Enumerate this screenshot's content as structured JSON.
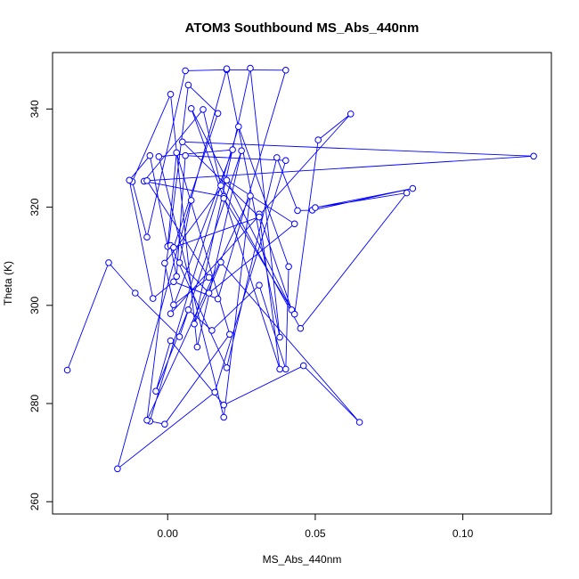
{
  "chart_data": {
    "type": "line",
    "title": "ATOM3 Southbound MS_Abs_440nm",
    "xlabel": "MS_Abs_440nm",
    "ylabel": "Theta (K)",
    "xlim": [
      -0.039,
      0.13
    ],
    "ylim": [
      257.5,
      351.5
    ],
    "xticks": [
      0.0,
      0.05,
      0.1
    ],
    "xtick_labels": [
      "0.00",
      "0.05",
      "0.10"
    ],
    "yticks": [
      260,
      280,
      300,
      320,
      340
    ],
    "ytick_labels": [
      "260",
      "280",
      "300",
      "320",
      "340"
    ],
    "grid": false,
    "legend": "none",
    "line_color": "#0000ff",
    "marker": "open-circle",
    "series": [
      {
        "x": [
          -0.034,
          -0.02,
          -0.011,
          0.004,
          0.025,
          0.01,
          0.001,
          -0.012,
          -0.007,
          0.006,
          0.02,
          0.04,
          0.017,
          0.002,
          -0.005,
          -0.013,
          -0.006,
          0.0,
          0.003,
          0.021,
          -0.001,
          -0.006,
          0.024,
          0.041,
          0.04,
          0.031,
          0.015,
          0.007,
          -0.004,
          0.001,
          0.019,
          0.046,
          0.065,
          0.018,
          0.009,
          0.028,
          0.038,
          0.02,
          -0.017,
          0.016,
          0.04,
          0.006,
          0.003,
          0.001,
          0.02,
          0.037,
          0.044,
          0.049,
          0.083,
          0.05,
          0.081,
          0.045,
          0.018,
          0.012,
          -0.008,
          0.019,
          0.038,
          0.031,
          0.042,
          0.008,
          0.019,
          0.043,
          0.051,
          0.062,
          0.001,
          0.022,
          -0.003,
          0.019,
          0.028,
          -0.007,
          0.007,
          0.017,
          0.002,
          0.031,
          0.005,
          0.124,
          -0.007,
          0.014,
          0.002,
          -0.001,
          0.02,
          0.043,
          0.014,
          0.004,
          0.008
        ],
        "y": [
          286.8,
          308.7,
          302.5,
          293.6,
          331.5,
          291.5,
          343.0,
          325.2,
          313.9,
          347.8,
          348.0,
          347.9,
          301.3,
          304.8,
          301.4,
          325.5,
          330.5,
          312.0,
          331.1,
          294.1,
          275.8,
          276.4,
          336.4,
          307.9,
          287.0,
          304.1,
          294.9,
          299.1,
          282.5,
          292.8,
          279.7,
          287.7,
          276.2,
          308.8,
          296.2,
          348.3,
          293.5,
          348.2,
          266.7,
          282.3,
          329.5,
          330.5,
          305.9,
          312.2,
          287.3,
          330.1,
          319.3,
          319.4,
          323.8,
          319.9,
          322.9,
          295.3,
          324.4,
          339.9,
          325.3,
          322.2,
          287.0,
          318.6,
          299.1,
          340.1,
          321.8,
          298.2,
          333.7,
          339.0,
          298.3,
          331.7,
          330.3,
          277.2,
          322.3,
          276.6,
          344.9,
          339.1,
          311.8,
          318.0,
          333.3,
          330.4,
          325.4,
          305.7,
          300.1,
          308.6,
          325.5,
          316.6,
          302.5,
          308.7,
          321.4
        ]
      }
    ]
  }
}
